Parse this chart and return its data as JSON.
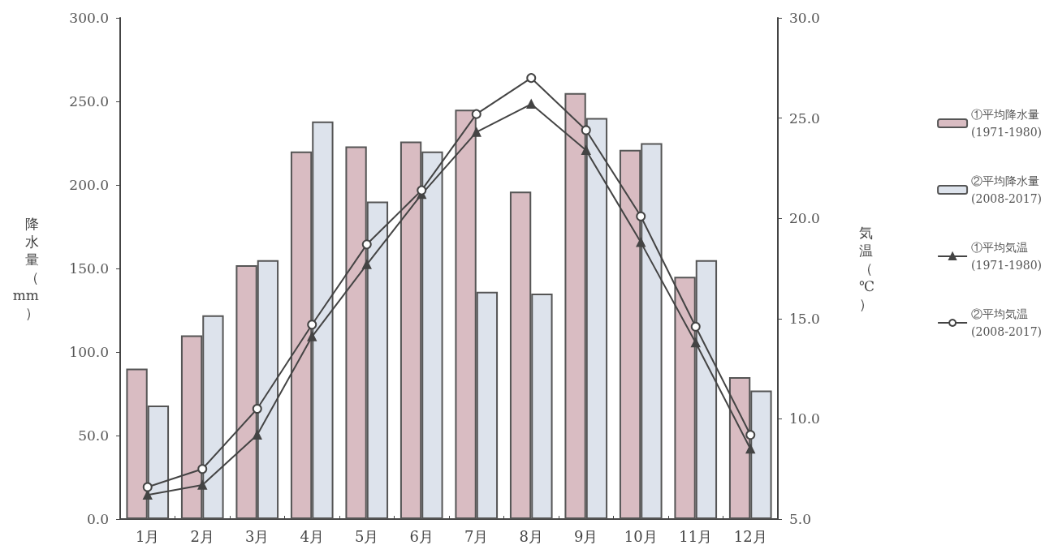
{
  "chart_data": {
    "type": "bar",
    "categories": [
      "1月",
      "2月",
      "3月",
      "4月",
      "5月",
      "6月",
      "7月",
      "8月",
      "9月",
      "10月",
      "11月",
      "12月"
    ],
    "ylabel": "降水量（mm）",
    "y2label": "気温（℃）",
    "ylim": [
      0,
      300
    ],
    "yticks": [
      {
        "value": 0,
        "label": "0.0"
      },
      {
        "value": 50,
        "label": "50.0"
      },
      {
        "value": 100,
        "label": "100.0"
      },
      {
        "value": 150,
        "label": "150.0"
      },
      {
        "value": 200,
        "label": "200.0"
      },
      {
        "value": 250,
        "label": "250.0"
      },
      {
        "value": 300,
        "label": "300.0"
      }
    ],
    "y2lim": [
      5,
      30
    ],
    "y2ticks": [
      {
        "value": 5,
        "label": "5.0"
      },
      {
        "value": 10,
        "label": "10.0"
      },
      {
        "value": 15,
        "label": "15.0"
      },
      {
        "value": 20,
        "label": "20.0"
      },
      {
        "value": 25,
        "label": "25.0"
      },
      {
        "value": 30,
        "label": "30.0"
      }
    ],
    "grid": false,
    "legend": "right",
    "series": [
      {
        "name": "①平均降水量 (1971-1980)",
        "color": "#d9bcc2",
        "values": [
          90,
          110,
          152,
          220,
          223,
          226,
          245,
          196,
          255,
          221,
          145,
          85
        ]
      },
      {
        "name": "②平均降水量 (2008-2017)",
        "color": "#dde3ec",
        "values": [
          68,
          122,
          155,
          238,
          190,
          220,
          136,
          135,
          240,
          225,
          155,
          77
        ]
      },
      {
        "name": "①平均気温 (1971-1980)",
        "type": "line",
        "axis": "y2",
        "marker": "triangle",
        "color": "#444444",
        "values": [
          6.2,
          6.7,
          9.2,
          14.1,
          17.7,
          21.2,
          24.3,
          25.7,
          23.4,
          18.8,
          13.8,
          8.5
        ]
      },
      {
        "name": "②平均気温 (2008-2017)",
        "type": "line",
        "axis": "y2",
        "marker": "circle",
        "color": "#444444",
        "values": [
          6.6,
          7.5,
          10.5,
          14.7,
          18.7,
          21.4,
          25.2,
          27.0,
          24.4,
          20.1,
          14.6,
          9.2
        ]
      }
    ]
  }
}
